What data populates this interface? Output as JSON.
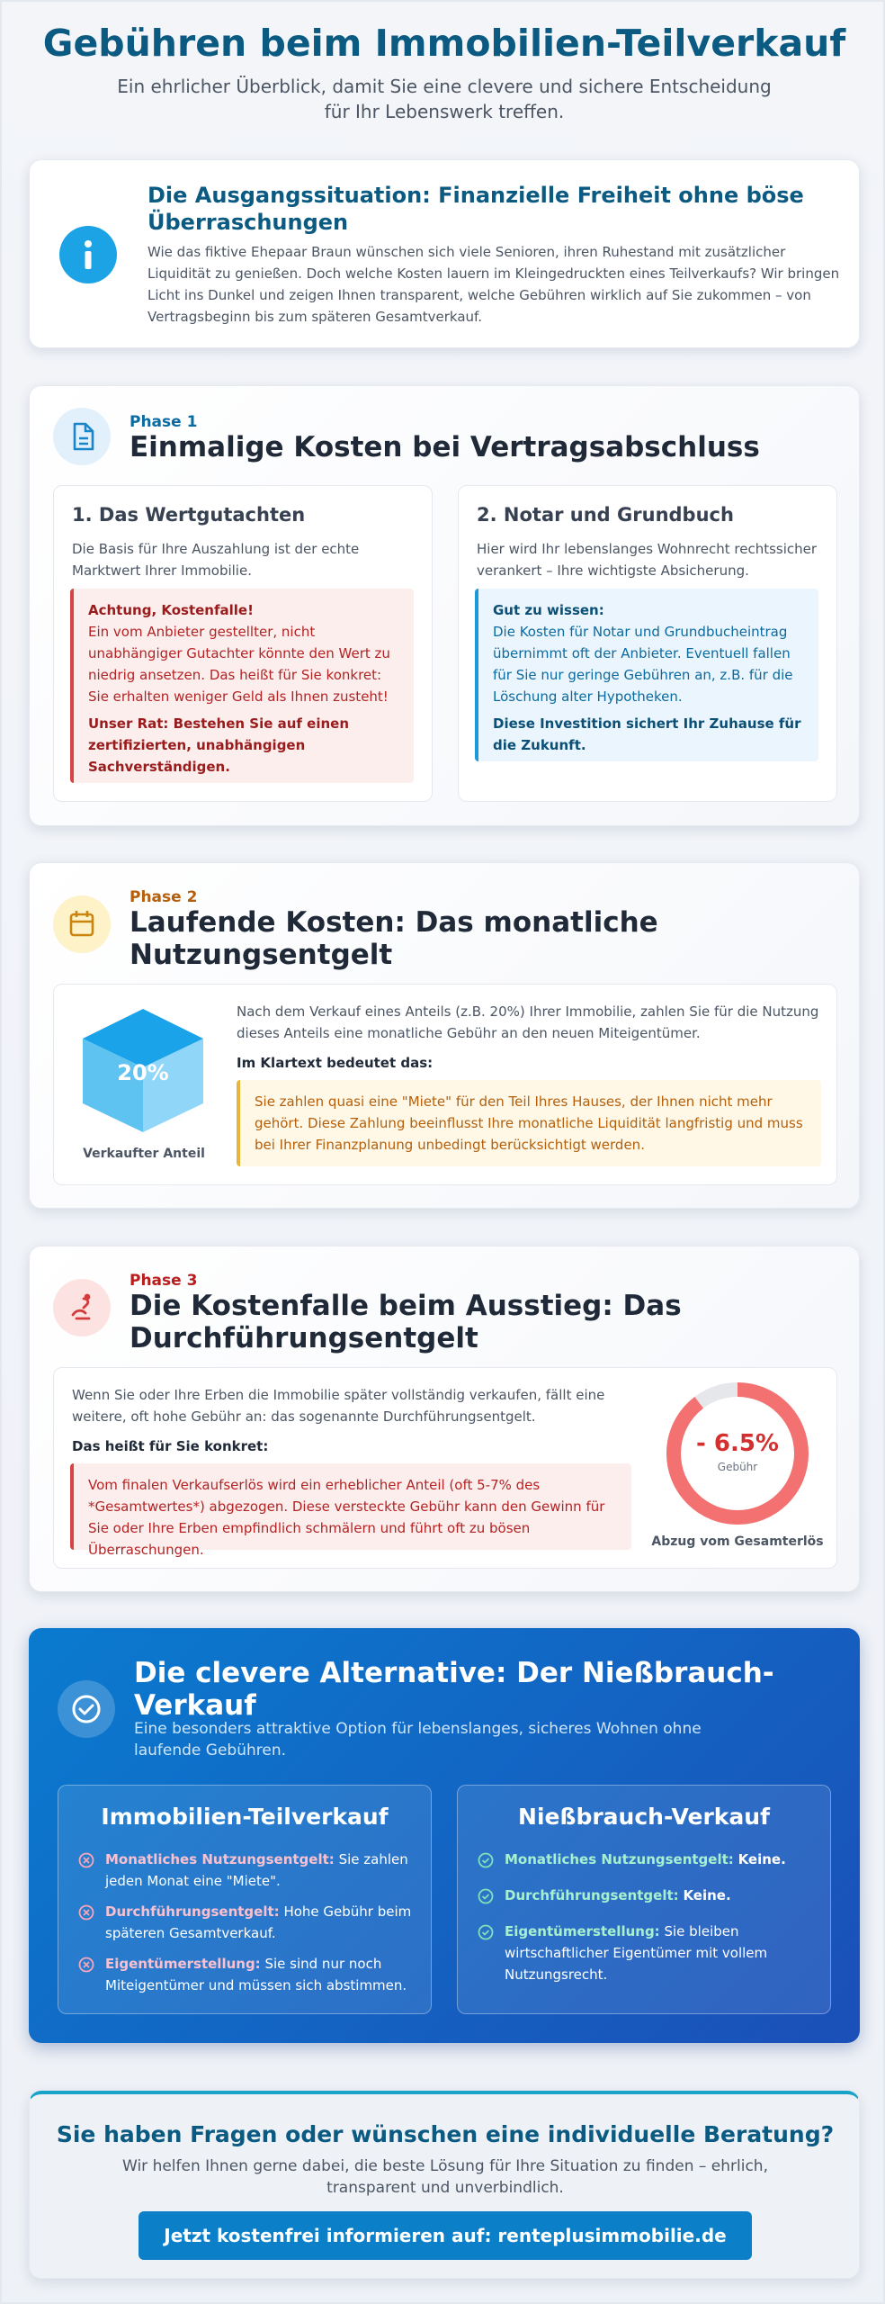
{
  "header": {
    "title": "Gebühren beim Immobilien-Teilverkauf",
    "subtitle": "Ein ehrlicher Überblick, damit Sie eine clevere und sichere Entscheidung für Ihr Lebenswerk treffen."
  },
  "intro": {
    "title": "Die Ausgangssituation: Finanzielle Freiheit ohne böse Überraschungen",
    "text": "Wie das fiktive Ehepaar Braun wünschen sich viele Senioren, ihren Ruhestand mit zusätzlicher Liquidität zu genießen. Doch welche Kosten lauern im Kleingedruckten eines Teilverkaufs? Wir bringen Licht ins Dunkel und zeigen Ihnen transparent, welche Gebühren wirklich auf Sie zukommen – von Vertragsbeginn bis zum späteren Gesamtverkauf."
  },
  "phase1": {
    "label": "Phase 1",
    "title": "Einmalige Kosten bei Vertragsabschluss",
    "cards": [
      {
        "title": "1. Das Wertgutachten",
        "text": "Die Basis für Ihre Auszahlung ist der echte Marktwert Ihrer Immobilie.",
        "box_title": "Achtung, Kostenfalle!",
        "box_text": "Ein vom Anbieter gestellter, nicht unabhängiger Gutachter könnte den Wert zu niedrig ansetzen. Das heißt für Sie konkret: Sie erhalten weniger Geld als Ihnen zusteht!",
        "box_note": "Unser Rat: Bestehen Sie auf einen zertifizierten, unabhängigen Sachverständigen."
      },
      {
        "title": "2. Notar und Grundbuch",
        "text": "Hier wird Ihr lebenslanges Wohnrecht rechtssicher verankert – Ihre wichtigste Absicherung.",
        "box_title": "Gut zu wissen:",
        "box_text": "Die Kosten für Notar und Grundbucheintrag übernimmt oft der Anbieter. Eventuell fallen für Sie nur geringe Gebühren an, z.B. für die Löschung alter Hypotheken.",
        "box_note": "Diese Investition sichert Ihr Zuhause für die Zukunft."
      }
    ]
  },
  "phase2": {
    "label": "Phase 2",
    "title": "Laufende Kosten: Das monatliche Nutzungsentgelt",
    "cube_label": "20%",
    "cube_caption": "Verkaufter Anteil",
    "text": "Nach dem Verkauf eines Anteils (z.B. 20%) Ihrer Immobilie, zahlen Sie für die Nutzung dieses Anteils eine monatliche Gebühr an den neuen Miteigentümer.",
    "subheading": "Im Klartext bedeutet das:",
    "box_text": "Sie zahlen quasi eine \"Miete\" für den Teil Ihres Hauses, der Ihnen nicht mehr gehört. Diese Zahlung beeinflusst Ihre monatliche Liquidität langfristig und muss bei Ihrer Finanzplanung unbedingt berücksichtigt werden."
  },
  "phase3": {
    "label": "Phase 3",
    "title": "Die Kostenfalle beim Ausstieg: Das Durchführungsentgelt",
    "text": "Wenn Sie oder Ihre Erben die Immobilie später vollständig verkaufen, fällt eine weitere, oft hohe Gebühr an: das sogenannte Durchführungsentgelt.",
    "subheading": "Das heißt für Sie konkret:",
    "box_text": "Vom finalen Verkaufserlös wird ein erheblicher Anteil (oft 5-7% des *Gesamtwertes*) abgezogen. Diese versteckte Gebühr kann den Gewinn für Sie oder Ihre Erben empfindlich schmälern und führt oft zu bösen Überraschungen.",
    "donut_value": "- 6.5%",
    "donut_unit": "Gebühr",
    "donut_caption": "Abzug vom Gesamterlös"
  },
  "alternative": {
    "title": "Die clevere Alternative: Der Nießbrauch-Verkauf",
    "subtitle": "Eine besonders attraktive Option für lebenslanges, sicheres Wohnen ohne laufende Gebühren.",
    "columns": [
      {
        "title": "Immobilien-Teilverkauf",
        "items": [
          {
            "label": "Monatliches Nutzungsentgelt:",
            "text": "Sie zahlen jeden Monat eine \"Miete\"."
          },
          {
            "label": "Durchführungsentgelt:",
            "text": "Hohe Gebühr beim späteren Gesamtverkauf."
          },
          {
            "label": "Eigentümerstellung:",
            "text": "Sie sind nur noch Miteigentümer und müssen sich abstimmen."
          }
        ]
      },
      {
        "title": "Nießbrauch-Verkauf",
        "items": [
          {
            "label": "Monatliches Nutzungsentgelt:",
            "text": "Keine."
          },
          {
            "label": "Durchführungsentgelt:",
            "text": "Keine."
          },
          {
            "label": "Eigentümerstellung:",
            "text": "Sie bleiben wirtschaftlicher Eigentümer mit vollem Nutzungsrecht."
          }
        ]
      }
    ]
  },
  "cta": {
    "title": "Sie haben Fragen oder wünschen eine individuelle Beratung?",
    "text": "Wir helfen Ihnen gerne dabei, die beste Lösung für Ihre Situation zu finden – ehrlich, transparent und unverbindlich.",
    "button": "Jetzt kostenfrei informieren auf: renteplusimmobilie.de"
  }
}
